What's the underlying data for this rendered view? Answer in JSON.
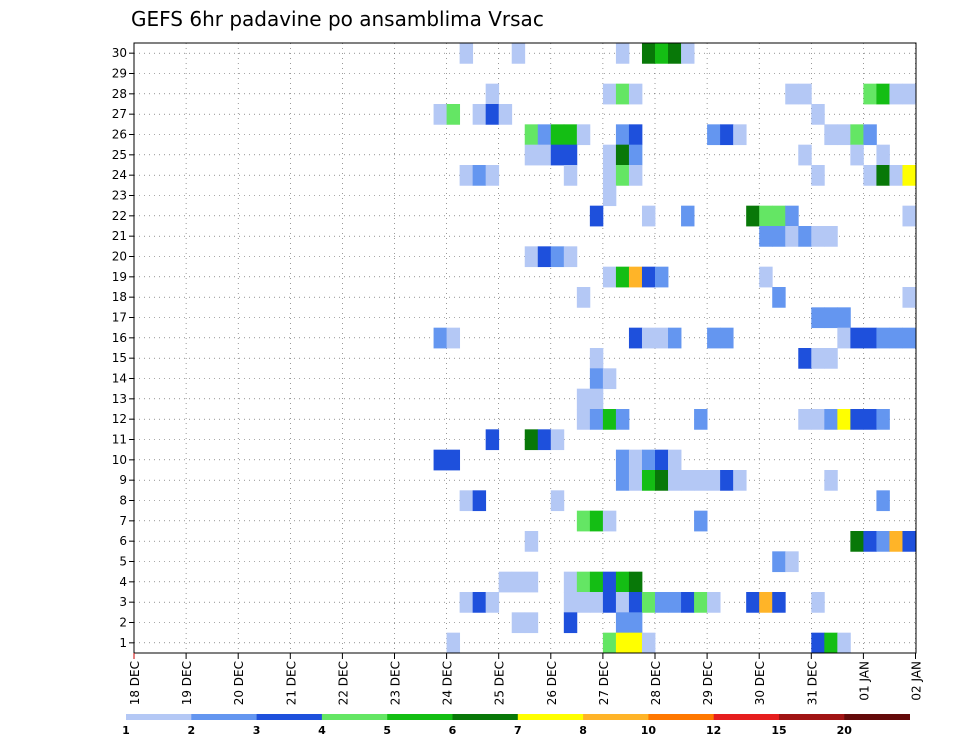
{
  "chart_data": {
    "type": "heatmap",
    "title": "GEFS 6hr padavine po ansamblima Vrsac",
    "y_range": [
      1,
      30
    ],
    "x_tick_labels": [
      "18 DEC",
      "19 DEC",
      "20 DEC",
      "21 DEC",
      "22 DEC",
      "23 DEC",
      "24 DEC",
      "25 DEC",
      "26 DEC",
      "27 DEC",
      "28 DEC",
      "29 DEC",
      "30 DEC",
      "31 DEC",
      "01 JAN",
      "02 JAN"
    ],
    "x_slots_per_day": 4,
    "grid": true,
    "colorbar": {
      "labels": [
        "1",
        "2",
        "3",
        "4",
        "5",
        "6",
        "7",
        "8",
        "10",
        "12",
        "15",
        "20"
      ],
      "colors": [
        "#b4c8f5",
        "#6496f0",
        "#1e50dc",
        "#64e664",
        "#14be14",
        "#087808",
        "#ffff00",
        "#ffb428",
        "#ff7800",
        "#e61e1e",
        "#a01414",
        "#640a0a"
      ]
    },
    "cells": [
      {
        "member": 30,
        "slot": 25,
        "level": 1
      },
      {
        "member": 30,
        "slot": 29,
        "level": 1
      },
      {
        "member": 30,
        "slot": 37,
        "level": 1
      },
      {
        "member": 30,
        "slot": 39,
        "level": 6
      },
      {
        "member": 30,
        "slot": 40,
        "level": 5
      },
      {
        "member": 30,
        "slot": 41,
        "level": 6
      },
      {
        "member": 30,
        "slot": 42,
        "level": 1
      },
      {
        "member": 28,
        "slot": 27,
        "level": 1
      },
      {
        "member": 28,
        "slot": 36,
        "level": 1
      },
      {
        "member": 28,
        "slot": 37,
        "level": 4
      },
      {
        "member": 28,
        "slot": 38,
        "level": 1
      },
      {
        "member": 28,
        "slot": 50,
        "level": 1
      },
      {
        "member": 28,
        "slot": 51,
        "level": 1
      },
      {
        "member": 28,
        "slot": 56,
        "level": 4
      },
      {
        "member": 28,
        "slot": 57,
        "level": 5
      },
      {
        "member": 28,
        "slot": 58,
        "level": 1
      },
      {
        "member": 28,
        "slot": 59,
        "level": 1
      },
      {
        "member": 27,
        "slot": 23,
        "level": 1
      },
      {
        "member": 27,
        "slot": 24,
        "level": 4
      },
      {
        "member": 27,
        "slot": 26,
        "level": 1
      },
      {
        "member": 27,
        "slot": 27,
        "level": 3
      },
      {
        "member": 27,
        "slot": 28,
        "level": 1
      },
      {
        "member": 27,
        "slot": 52,
        "level": 1
      },
      {
        "member": 26,
        "slot": 30,
        "level": 4
      },
      {
        "member": 26,
        "slot": 31,
        "level": 2
      },
      {
        "member": 26,
        "slot": 32,
        "level": 5
      },
      {
        "member": 26,
        "slot": 33,
        "level": 5
      },
      {
        "member": 26,
        "slot": 34,
        "level": 1
      },
      {
        "member": 26,
        "slot": 37,
        "level": 2
      },
      {
        "member": 26,
        "slot": 38,
        "level": 3
      },
      {
        "member": 26,
        "slot": 44,
        "level": 2
      },
      {
        "member": 26,
        "slot": 45,
        "level": 3
      },
      {
        "member": 26,
        "slot": 46,
        "level": 1
      },
      {
        "member": 26,
        "slot": 53,
        "level": 1
      },
      {
        "member": 26,
        "slot": 54,
        "level": 1
      },
      {
        "member": 26,
        "slot": 55,
        "level": 4
      },
      {
        "member": 26,
        "slot": 56,
        "level": 2
      },
      {
        "member": 25,
        "slot": 30,
        "level": 1
      },
      {
        "member": 25,
        "slot": 31,
        "level": 1
      },
      {
        "member": 25,
        "slot": 32,
        "level": 3
      },
      {
        "member": 25,
        "slot": 33,
        "level": 3
      },
      {
        "member": 25,
        "slot": 36,
        "level": 1
      },
      {
        "member": 25,
        "slot": 37,
        "level": 6
      },
      {
        "member": 25,
        "slot": 38,
        "level": 2
      },
      {
        "member": 25,
        "slot": 51,
        "level": 1
      },
      {
        "member": 25,
        "slot": 55,
        "level": 1
      },
      {
        "member": 25,
        "slot": 57,
        "level": 1
      },
      {
        "member": 24,
        "slot": 25,
        "level": 1
      },
      {
        "member": 24,
        "slot": 26,
        "level": 2
      },
      {
        "member": 24,
        "slot": 27,
        "level": 1
      },
      {
        "member": 24,
        "slot": 33,
        "level": 1
      },
      {
        "member": 24,
        "slot": 36,
        "level": 1
      },
      {
        "member": 24,
        "slot": 37,
        "level": 4
      },
      {
        "member": 24,
        "slot": 38,
        "level": 1
      },
      {
        "member": 24,
        "slot": 52,
        "level": 1
      },
      {
        "member": 24,
        "slot": 56,
        "level": 1
      },
      {
        "member": 24,
        "slot": 57,
        "level": 6
      },
      {
        "member": 24,
        "slot": 58,
        "level": 1
      },
      {
        "member": 24,
        "slot": 59,
        "level": 7
      },
      {
        "member": 23,
        "slot": 36,
        "level": 1
      },
      {
        "member": 22,
        "slot": 35,
        "level": 3
      },
      {
        "member": 22,
        "slot": 39,
        "level": 1
      },
      {
        "member": 22,
        "slot": 42,
        "level": 2
      },
      {
        "member": 22,
        "slot": 47,
        "level": 6
      },
      {
        "member": 22,
        "slot": 48,
        "level": 4
      },
      {
        "member": 22,
        "slot": 49,
        "level": 4
      },
      {
        "member": 22,
        "slot": 50,
        "level": 2
      },
      {
        "member": 22,
        "slot": 59,
        "level": 1
      },
      {
        "member": 21,
        "slot": 48,
        "level": 2
      },
      {
        "member": 21,
        "slot": 49,
        "level": 2
      },
      {
        "member": 21,
        "slot": 50,
        "level": 1
      },
      {
        "member": 21,
        "slot": 51,
        "level": 2
      },
      {
        "member": 21,
        "slot": 52,
        "level": 1
      },
      {
        "member": 21,
        "slot": 53,
        "level": 1
      },
      {
        "member": 20,
        "slot": 30,
        "level": 1
      },
      {
        "member": 20,
        "slot": 31,
        "level": 3
      },
      {
        "member": 20,
        "slot": 32,
        "level": 2
      },
      {
        "member": 20,
        "slot": 33,
        "level": 1
      },
      {
        "member": 19,
        "slot": 36,
        "level": 1
      },
      {
        "member": 19,
        "slot": 37,
        "level": 5
      },
      {
        "member": 19,
        "slot": 38,
        "level": 8
      },
      {
        "member": 19,
        "slot": 39,
        "level": 3
      },
      {
        "member": 19,
        "slot": 40,
        "level": 2
      },
      {
        "member": 19,
        "slot": 48,
        "level": 1
      },
      {
        "member": 18,
        "slot": 34,
        "level": 1
      },
      {
        "member": 18,
        "slot": 49,
        "level": 2
      },
      {
        "member": 18,
        "slot": 59,
        "level": 1
      },
      {
        "member": 17,
        "slot": 52,
        "level": 2
      },
      {
        "member": 17,
        "slot": 53,
        "level": 2
      },
      {
        "member": 17,
        "slot": 54,
        "level": 2
      },
      {
        "member": 16,
        "slot": 23,
        "level": 2
      },
      {
        "member": 16,
        "slot": 24,
        "level": 1
      },
      {
        "member": 16,
        "slot": 38,
        "level": 3
      },
      {
        "member": 16,
        "slot": 39,
        "level": 1
      },
      {
        "member": 16,
        "slot": 40,
        "level": 1
      },
      {
        "member": 16,
        "slot": 41,
        "level": 2
      },
      {
        "member": 16,
        "slot": 44,
        "level": 2
      },
      {
        "member": 16,
        "slot": 45,
        "level": 2
      },
      {
        "member": 16,
        "slot": 54,
        "level": 1
      },
      {
        "member": 16,
        "slot": 55,
        "level": 3
      },
      {
        "member": 16,
        "slot": 56,
        "level": 3
      },
      {
        "member": 16,
        "slot": 57,
        "level": 2
      },
      {
        "member": 16,
        "slot": 58,
        "level": 2
      },
      {
        "member": 16,
        "slot": 59,
        "level": 2
      },
      {
        "member": 15,
        "slot": 35,
        "level": 1
      },
      {
        "member": 15,
        "slot": 51,
        "level": 3
      },
      {
        "member": 15,
        "slot": 52,
        "level": 1
      },
      {
        "member": 15,
        "slot": 53,
        "level": 1
      },
      {
        "member": 14,
        "slot": 35,
        "level": 2
      },
      {
        "member": 14,
        "slot": 36,
        "level": 1
      },
      {
        "member": 13,
        "slot": 34,
        "level": 1
      },
      {
        "member": 13,
        "slot": 35,
        "level": 1
      },
      {
        "member": 12,
        "slot": 34,
        "level": 1
      },
      {
        "member": 12,
        "slot": 35,
        "level": 2
      },
      {
        "member": 12,
        "slot": 36,
        "level": 5
      },
      {
        "member": 12,
        "slot": 37,
        "level": 2
      },
      {
        "member": 12,
        "slot": 43,
        "level": 2
      },
      {
        "member": 12,
        "slot": 51,
        "level": 1
      },
      {
        "member": 12,
        "slot": 52,
        "level": 1
      },
      {
        "member": 12,
        "slot": 53,
        "level": 2
      },
      {
        "member": 12,
        "slot": 54,
        "level": 7
      },
      {
        "member": 12,
        "slot": 55,
        "level": 3
      },
      {
        "member": 12,
        "slot": 56,
        "level": 3
      },
      {
        "member": 12,
        "slot": 57,
        "level": 2
      },
      {
        "member": 11,
        "slot": 27,
        "level": 3
      },
      {
        "member": 11,
        "slot": 30,
        "level": 6
      },
      {
        "member": 11,
        "slot": 31,
        "level": 3
      },
      {
        "member": 11,
        "slot": 32,
        "level": 1
      },
      {
        "member": 10,
        "slot": 23,
        "level": 3
      },
      {
        "member": 10,
        "slot": 24,
        "level": 3
      },
      {
        "member": 10,
        "slot": 37,
        "level": 2
      },
      {
        "member": 10,
        "slot": 38,
        "level": 1
      },
      {
        "member": 10,
        "slot": 39,
        "level": 2
      },
      {
        "member": 10,
        "slot": 40,
        "level": 3
      },
      {
        "member": 10,
        "slot": 41,
        "level": 1
      },
      {
        "member": 9,
        "slot": 37,
        "level": 2
      },
      {
        "member": 9,
        "slot": 38,
        "level": 1
      },
      {
        "member": 9,
        "slot": 39,
        "level": 5
      },
      {
        "member": 9,
        "slot": 40,
        "level": 6
      },
      {
        "member": 9,
        "slot": 41,
        "level": 1
      },
      {
        "member": 9,
        "slot": 42,
        "level": 1
      },
      {
        "member": 9,
        "slot": 43,
        "level": 1
      },
      {
        "member": 9,
        "slot": 44,
        "level": 1
      },
      {
        "member": 9,
        "slot": 45,
        "level": 3
      },
      {
        "member": 9,
        "slot": 46,
        "level": 1
      },
      {
        "member": 9,
        "slot": 53,
        "level": 1
      },
      {
        "member": 8,
        "slot": 25,
        "level": 1
      },
      {
        "member": 8,
        "slot": 26,
        "level": 3
      },
      {
        "member": 8,
        "slot": 32,
        "level": 1
      },
      {
        "member": 8,
        "slot": 57,
        "level": 2
      },
      {
        "member": 7,
        "slot": 34,
        "level": 4
      },
      {
        "member": 7,
        "slot": 35,
        "level": 5
      },
      {
        "member": 7,
        "slot": 36,
        "level": 1
      },
      {
        "member": 7,
        "slot": 43,
        "level": 2
      },
      {
        "member": 6,
        "slot": 30,
        "level": 1
      },
      {
        "member": 6,
        "slot": 55,
        "level": 6
      },
      {
        "member": 6,
        "slot": 56,
        "level": 3
      },
      {
        "member": 6,
        "slot": 57,
        "level": 2
      },
      {
        "member": 6,
        "slot": 58,
        "level": 8
      },
      {
        "member": 6,
        "slot": 59,
        "level": 3
      },
      {
        "member": 5,
        "slot": 49,
        "level": 2
      },
      {
        "member": 5,
        "slot": 50,
        "level": 1
      },
      {
        "member": 4,
        "slot": 28,
        "level": 1
      },
      {
        "member": 4,
        "slot": 29,
        "level": 1
      },
      {
        "member": 4,
        "slot": 30,
        "level": 1
      },
      {
        "member": 4,
        "slot": 33,
        "level": 1
      },
      {
        "member": 4,
        "slot": 34,
        "level": 4
      },
      {
        "member": 4,
        "slot": 35,
        "level": 5
      },
      {
        "member": 4,
        "slot": 36,
        "level": 3
      },
      {
        "member": 4,
        "slot": 37,
        "level": 5
      },
      {
        "member": 4,
        "slot": 38,
        "level": 6
      },
      {
        "member": 3,
        "slot": 25,
        "level": 1
      },
      {
        "member": 3,
        "slot": 26,
        "level": 3
      },
      {
        "member": 3,
        "slot": 27,
        "level": 1
      },
      {
        "member": 3,
        "slot": 33,
        "level": 1
      },
      {
        "member": 3,
        "slot": 34,
        "level": 1
      },
      {
        "member": 3,
        "slot": 35,
        "level": 1
      },
      {
        "member": 3,
        "slot": 36,
        "level": 3
      },
      {
        "member": 3,
        "slot": 37,
        "level": 1
      },
      {
        "member": 3,
        "slot": 38,
        "level": 3
      },
      {
        "member": 3,
        "slot": 39,
        "level": 4
      },
      {
        "member": 3,
        "slot": 40,
        "level": 2
      },
      {
        "member": 3,
        "slot": 41,
        "level": 2
      },
      {
        "member": 3,
        "slot": 42,
        "level": 3
      },
      {
        "member": 3,
        "slot": 43,
        "level": 4
      },
      {
        "member": 3,
        "slot": 44,
        "level": 1
      },
      {
        "member": 3,
        "slot": 47,
        "level": 3
      },
      {
        "member": 3,
        "slot": 48,
        "level": 8
      },
      {
        "member": 3,
        "slot": 49,
        "level": 3
      },
      {
        "member": 3,
        "slot": 52,
        "level": 1
      },
      {
        "member": 2,
        "slot": 29,
        "level": 1
      },
      {
        "member": 2,
        "slot": 30,
        "level": 1
      },
      {
        "member": 2,
        "slot": 33,
        "level": 3
      },
      {
        "member": 2,
        "slot": 37,
        "level": 2
      },
      {
        "member": 2,
        "slot": 38,
        "level": 2
      },
      {
        "member": 1,
        "slot": 24,
        "level": 1
      },
      {
        "member": 1,
        "slot": 36,
        "level": 4
      },
      {
        "member": 1,
        "slot": 37,
        "level": 7
      },
      {
        "member": 1,
        "slot": 38,
        "level": 7
      },
      {
        "member": 1,
        "slot": 39,
        "level": 1
      },
      {
        "member": 1,
        "slot": 52,
        "level": 3
      },
      {
        "member": 1,
        "slot": 53,
        "level": 5
      },
      {
        "member": 1,
        "slot": 54,
        "level": 1
      }
    ]
  }
}
